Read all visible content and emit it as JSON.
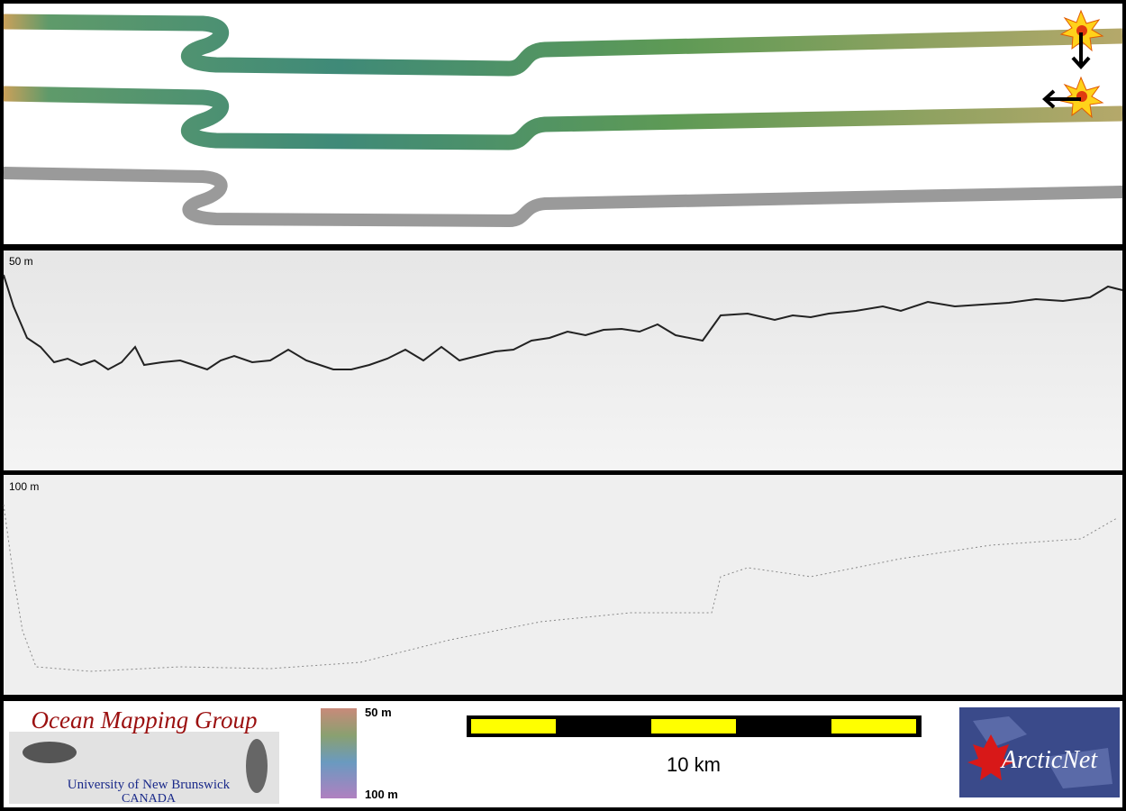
{
  "profile_panels": [
    {
      "depth_label": "50 m"
    },
    {
      "depth_label": "100 m"
    }
  ],
  "legend": {
    "logo": {
      "title": "Ocean Mapping Group",
      "university": "University of New Brunswick",
      "country": "CANADA"
    },
    "color_scale": {
      "top_label": "50 m",
      "bottom_label": "100 m"
    },
    "scale_bar": {
      "label": "10 km"
    },
    "sponsor_logo": {
      "name": "ArcticNet"
    }
  }
}
